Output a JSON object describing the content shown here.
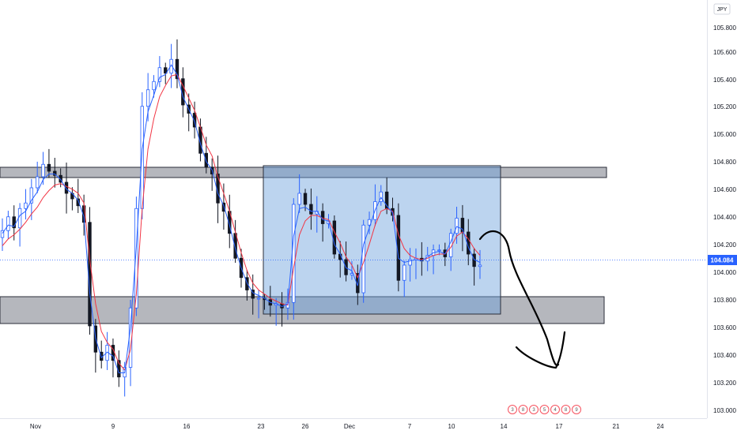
{
  "chart_data": {
    "type": "candlestick",
    "title": "",
    "currency": "JPY",
    "current_price": "104.084",
    "y_axis": {
      "ticks": [
        "105.800",
        "105.600",
        "105.400",
        "105.200",
        "105.000",
        "104.800",
        "104.600",
        "104.400",
        "104.200",
        "104.000",
        "103.800",
        "103.600",
        "103.400",
        "103.200",
        "103.000"
      ],
      "ylim": [
        102.95,
        105.85
      ]
    },
    "x_axis": {
      "ticks": [
        "Nov",
        "9",
        "16",
        "23",
        "26",
        "Dec",
        "7",
        "10",
        "14",
        "17",
        "21",
        "24"
      ]
    },
    "grid": false,
    "zones": [
      {
        "name": "resistance",
        "from": 104.67,
        "to": 104.73
      },
      {
        "name": "support",
        "from": 103.63,
        "to": 103.82
      },
      {
        "name": "range-box",
        "from": 103.69,
        "to": 104.78
      }
    ],
    "series": [
      {
        "values": [
          104.33,
          104.43,
          104.35,
          104.49,
          104.53,
          104.64,
          104.72,
          104.81,
          104.76,
          104.73,
          104.68,
          104.6,
          104.56,
          104.51,
          104.39,
          103.64,
          103.45,
          103.39,
          103.5,
          103.39,
          103.27,
          103.34,
          103.77,
          104.49,
          105.23,
          105.35,
          105.41,
          105.51,
          105.47,
          105.57,
          105.43,
          105.24,
          105.18,
          105.08,
          104.89,
          104.79,
          104.74,
          104.53,
          104.47,
          104.31,
          104.13,
          103.99,
          103.9,
          103.84,
          103.84,
          103.83,
          103.79,
          103.8,
          103.77,
          103.81,
          104.52,
          104.6,
          104.52,
          104.45,
          104.47,
          104.38,
          104.4,
          104.16,
          104.12,
          104.01,
          104.02,
          103.88,
          104.37,
          104.41,
          104.54,
          104.61,
          104.49,
          104.44,
          103.97,
          104.08,
          104.12,
          104.13,
          104.11,
          104.15,
          104.19,
          104.19,
          104.14,
          104.31,
          104.42,
          104.32,
          104.16,
          104.07,
          104.08
        ]
      },
      {
        "values": [
          104.31,
          104.37,
          104.36,
          104.44,
          104.47,
          104.55,
          104.61,
          104.7,
          104.74,
          104.74,
          104.7,
          104.63,
          104.6,
          104.55,
          104.43,
          103.88,
          103.55,
          103.41,
          103.45,
          103.42,
          103.3,
          103.3,
          103.63,
          104.21,
          104.92,
          105.19,
          105.31,
          105.44,
          105.46,
          105.53,
          105.46,
          105.3,
          105.21,
          105.12,
          104.96,
          104.83,
          104.77,
          104.6,
          104.51,
          104.37,
          104.2,
          104.06,
          103.95,
          103.88,
          103.86,
          103.84,
          103.81,
          103.8,
          103.78,
          103.8,
          104.29,
          104.49,
          104.5,
          104.47,
          104.47,
          104.41,
          104.4,
          104.23,
          104.16,
          104.06,
          104.04,
          103.93,
          104.23,
          104.35,
          104.48,
          104.57,
          104.51,
          104.46,
          104.13,
          104.1,
          104.11,
          104.12,
          104.11,
          104.14,
          104.17,
          104.18,
          104.16,
          104.25,
          104.36,
          104.34,
          104.21,
          104.12,
          104.1
        ]
      },
      {
        "values": [
          104.22,
          104.27,
          104.3,
          104.34,
          104.39,
          104.45,
          104.5,
          104.57,
          104.62,
          104.66,
          104.67,
          104.65,
          104.63,
          104.6,
          104.53,
          104.12,
          103.8,
          103.6,
          103.52,
          103.47,
          103.37,
          103.32,
          103.47,
          103.87,
          104.49,
          104.92,
          105.14,
          105.3,
          105.38,
          105.45,
          105.46,
          105.38,
          105.29,
          105.2,
          105.08,
          104.95,
          104.87,
          104.72,
          104.6,
          104.47,
          104.32,
          104.17,
          104.04,
          103.95,
          103.9,
          103.87,
          103.84,
          103.82,
          103.8,
          103.79,
          104.06,
          104.3,
          104.4,
          104.44,
          104.44,
          104.42,
          104.41,
          104.32,
          104.24,
          104.14,
          104.08,
          103.99,
          104.1,
          104.23,
          104.37,
          104.47,
          104.49,
          104.47,
          104.3,
          104.2,
          104.15,
          104.13,
          104.12,
          104.13,
          104.15,
          104.16,
          104.16,
          104.21,
          104.29,
          104.32,
          104.27,
          104.2,
          104.15
        ]
      }
    ]
  },
  "colors": {
    "candle": "#131722",
    "ema_fast": "#2962ff",
    "ema_slow": "#f23645",
    "price_badge": "#2962ff",
    "band_fill": "#b2b5be",
    "box_fill": "#aec9ea",
    "annotation": "#000000"
  },
  "events": [
    "3",
    "8",
    "3",
    "5",
    "4",
    "8",
    "9"
  ]
}
